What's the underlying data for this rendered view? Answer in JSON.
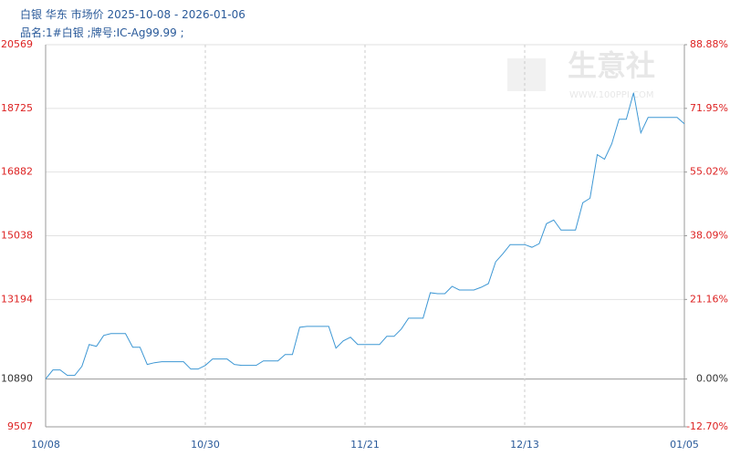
{
  "chart_data": {
    "type": "line",
    "title": "白银 华东 市场价 2025-10-08 - 2026-01-06",
    "subtitle": "品名:1#白银 ;牌号:IC-Ag99.99 ;",
    "watermark": "生意社",
    "watermark_url": "WWW.100PPI.COM",
    "categories": [
      "10/08",
      null,
      null,
      null,
      null,
      null,
      null,
      null,
      null,
      null,
      null,
      null,
      null,
      null,
      null,
      null,
      null,
      null,
      null,
      null,
      null,
      null,
      "10/30",
      null,
      null,
      null,
      null,
      null,
      null,
      null,
      null,
      null,
      null,
      null,
      null,
      null,
      null,
      null,
      null,
      null,
      null,
      null,
      null,
      null,
      "11/21",
      null,
      null,
      null,
      null,
      null,
      null,
      null,
      null,
      null,
      null,
      null,
      null,
      null,
      null,
      null,
      null,
      null,
      null,
      null,
      null,
      null,
      "12/13",
      null,
      null,
      null,
      null,
      null,
      null,
      null,
      null,
      null,
      null,
      null,
      null,
      null,
      null,
      null,
      null,
      null,
      null,
      null,
      null,
      null,
      "01/05"
    ],
    "series": [
      {
        "color": "#3d97d4",
        "values": [
          10890,
          11153,
          11153,
          10995,
          10995,
          11258,
          11889,
          11837,
          12152,
          12205,
          12205,
          12205,
          11811,
          11811,
          11311,
          11363,
          11390,
          11390,
          11390,
          11390,
          11179,
          11179,
          11285,
          11469,
          11469,
          11469,
          11311,
          11285,
          11285,
          11285,
          11416,
          11416,
          11416,
          11600,
          11600,
          12389,
          12415,
          12415,
          12415,
          12415,
          11784,
          11995,
          12100,
          11889,
          11889,
          11889,
          11889,
          12126,
          12126,
          12337,
          12652,
          12652,
          12652,
          13389,
          13362,
          13362,
          13573,
          13467,
          13467,
          13467,
          13546,
          13652,
          14283,
          14519,
          14782,
          14782,
          14782,
          14704,
          14809,
          15387,
          15493,
          15203,
          15203,
          15203,
          15992,
          16124,
          17386,
          17255,
          17702,
          18412,
          18412,
          19175,
          18017,
          18464,
          18464,
          18464,
          18464,
          18464,
          18280
        ]
      }
    ],
    "ylim": [
      9507,
      20569
    ],
    "yticks": [
      9507,
      10890,
      13194,
      15038,
      16882,
      18725,
      20569
    ],
    "baseline": 10890,
    "y2lim": [
      -12.7,
      88.88
    ],
    "y2ticks": [
      {
        "value": -12.7,
        "label": "-12.70%"
      },
      {
        "value": 0,
        "label": "0.00%"
      },
      {
        "value": 21.16,
        "label": "21.16%"
      },
      {
        "value": 38.09,
        "label": "38.09%"
      },
      {
        "value": 55.02,
        "label": "55.02%"
      },
      {
        "value": 71.95,
        "label": "71.95%"
      },
      {
        "value": 88.88,
        "label": "88.88%"
      }
    ],
    "grid": true
  }
}
